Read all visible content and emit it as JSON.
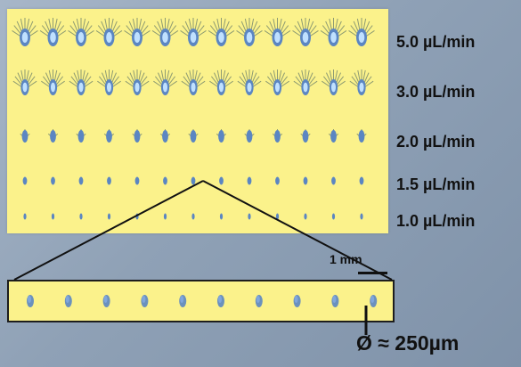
{
  "flow_rates": [
    {
      "label": "5.0 µL/min",
      "level": 5
    },
    {
      "label": "3.0 µL/min",
      "level": 4
    },
    {
      "label": "2.0 µL/min",
      "level": 3
    },
    {
      "label": "1.5 µL/min",
      "level": 2
    },
    {
      "label": "1.0 µL/min",
      "level": 1
    }
  ],
  "droplets_per_row": 13,
  "zoom_droplets": 10,
  "scale_label": "1 mm",
  "diameter_label": "Ø ≈ 250µm",
  "colors": {
    "background": "#fbf28b",
    "droplet": "#5b86c2",
    "droplet_core": "#bfe0ff",
    "spray": "#6a7f6a"
  }
}
